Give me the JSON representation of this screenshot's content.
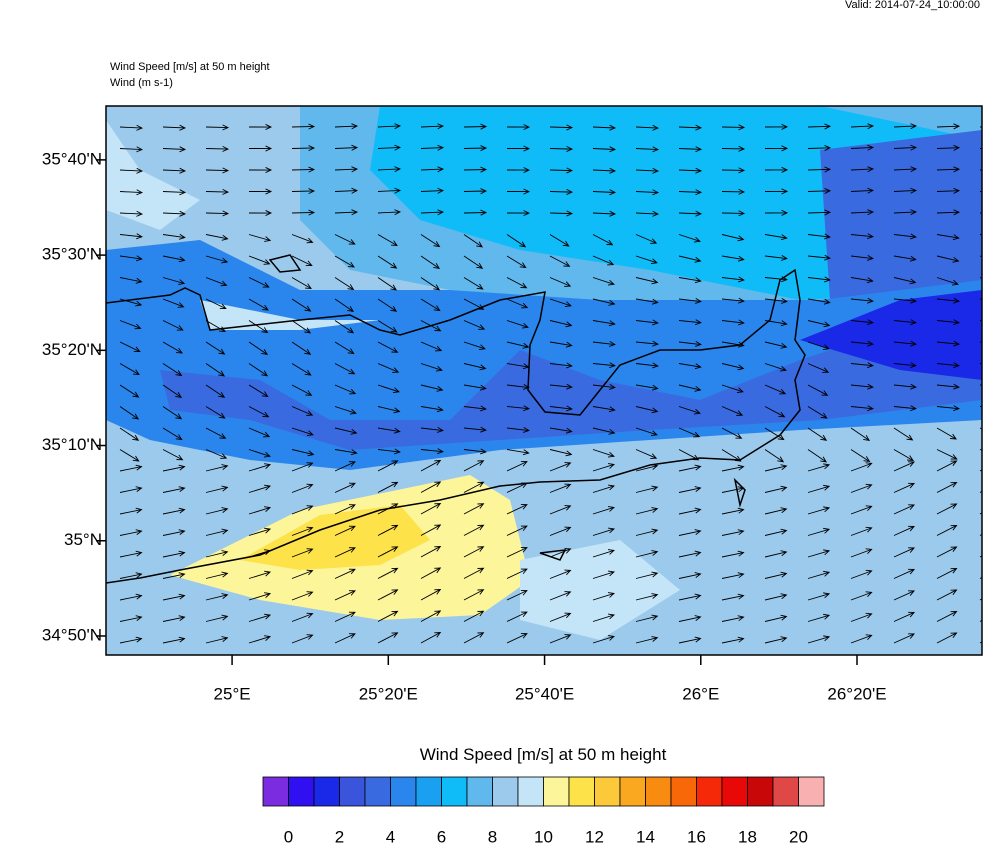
{
  "valid": "Valid: 2014-07-24_10:00:00",
  "title_lines": [
    "Wind Speed [m/s] at 50 m height",
    "Wind   (m s-1)"
  ],
  "map": {
    "lat_ticks": [
      {
        "value": 35.6667,
        "label": "35°40'N"
      },
      {
        "value": 35.5,
        "label": "35°30'N"
      },
      {
        "value": 35.3333,
        "label": "35°20'N"
      },
      {
        "value": 35.1667,
        "label": "35°10'N"
      },
      {
        "value": 35.0,
        "label": "35°N"
      },
      {
        "value": 34.8333,
        "label": "34°50'N"
      }
    ],
    "lon_ticks": [
      {
        "value": 25.0,
        "label": "25°E"
      },
      {
        "value": 25.3333,
        "label": "25°20'E"
      },
      {
        "value": 25.6667,
        "label": "25°40'E"
      },
      {
        "value": 26.0,
        "label": "26°E"
      },
      {
        "value": 26.3333,
        "label": "26°20'E"
      }
    ],
    "lat_range": [
      34.8,
      35.761
    ],
    "lon_range": [
      24.731,
      26.6
    ]
  },
  "colorbar": {
    "title": "Wind Speed [m/s] at 50 m height",
    "colors": [
      "#7b2be0",
      "#3010f0",
      "#1a28e8",
      "#3a55dc",
      "#3a6ae0",
      "#2a86ec",
      "#1aa0f0",
      "#10bcf8",
      "#60b8ec",
      "#9ccaec",
      "#c4e4f8",
      "#fcf59a",
      "#fde24a",
      "#fbc93a",
      "#f9a820",
      "#f88c10",
      "#f86808",
      "#f52808",
      "#e80808",
      "#c80808",
      "#e04848",
      "#f8b0b0"
    ],
    "ticks": [
      0,
      2,
      4,
      6,
      8,
      10,
      12,
      14,
      16,
      18,
      20
    ]
  }
}
